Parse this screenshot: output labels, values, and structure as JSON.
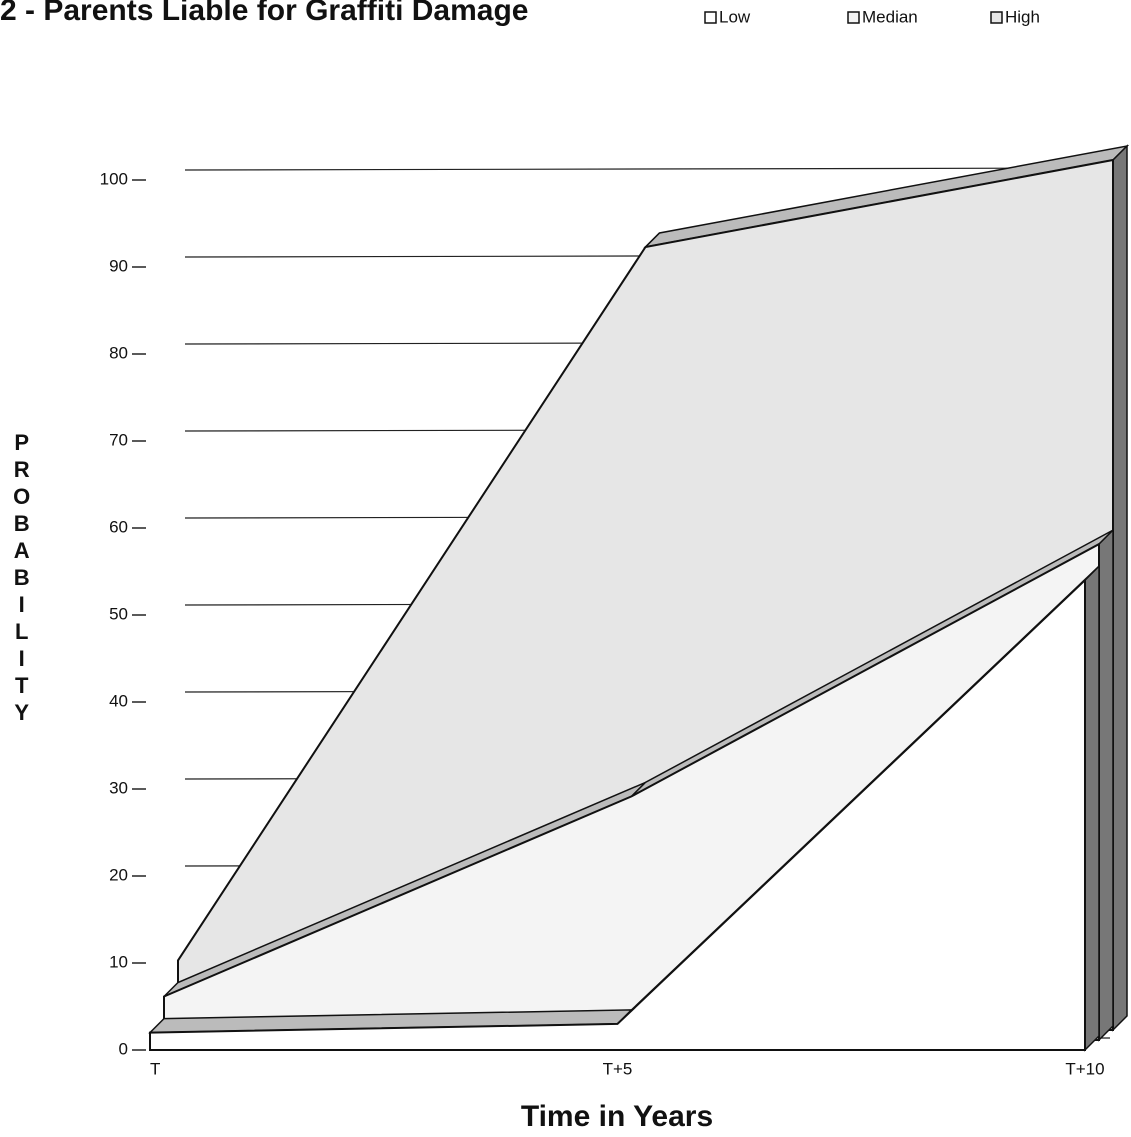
{
  "chart_data": {
    "type": "area3d",
    "title": "2 - Parents Liable for Graffiti Damage",
    "x_label": "Time in Years",
    "y_label": "PROBABILITY",
    "categories": [
      "T",
      "T+5",
      "T+10"
    ],
    "series": [
      {
        "name": "Low",
        "color": "#ffffff",
        "values": [
          2,
          3,
          54
        ]
      },
      {
        "name": "Median",
        "color": "#f4f4f4",
        "values": [
          5,
          28,
          57
        ]
      },
      {
        "name": "High",
        "color": "#e6e6e6",
        "values": [
          8,
          90,
          100
        ]
      }
    ],
    "ylim": [
      0,
      100
    ],
    "yticks": [
      0,
      10,
      20,
      30,
      40,
      50,
      60,
      70,
      80,
      90,
      100
    ],
    "grid": true,
    "legend": "top-right"
  }
}
